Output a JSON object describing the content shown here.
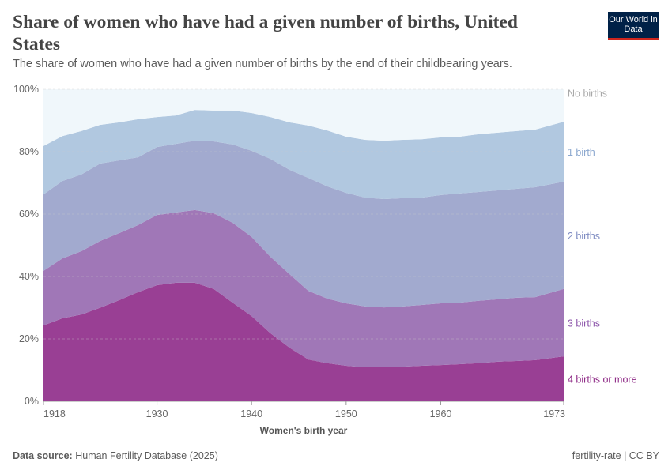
{
  "header": {
    "title": "Share of women who have had a given number of births, United States",
    "subtitle": "The share of women who have had a given number of births by the end of their childbearing years.",
    "logo_text": "Our World in Data"
  },
  "footer": {
    "source_label": "Data source:",
    "source_value": "Human Fertility Database (2025)",
    "right": "fertility-rate | CC BY"
  },
  "chart_data": {
    "type": "area",
    "stacked": true,
    "xlabel": "Women's birth year",
    "ylabel": "",
    "xlim": [
      1918,
      1973
    ],
    "ylim": [
      0,
      100
    ],
    "x_ticks": [
      "1918",
      "1930",
      "1940",
      "1950",
      "1960",
      "1973"
    ],
    "y_ticks": [
      "0%",
      "20%",
      "40%",
      "60%",
      "80%",
      "100%"
    ],
    "grid": "horizontal dashed",
    "legend": "right (inline labels)",
    "x": [
      1918,
      1920,
      1922,
      1924,
      1926,
      1928,
      1930,
      1932,
      1934,
      1936,
      1938,
      1940,
      1942,
      1944,
      1946,
      1948,
      1950,
      1952,
      1954,
      1956,
      1958,
      1960,
      1962,
      1964,
      1966,
      1968,
      1970,
      1973
    ],
    "series": [
      {
        "name": "4 births or more",
        "color": "#993f94",
        "label_color": "#8e2a86",
        "values": [
          24.3,
          26.6,
          27.8,
          30.0,
          32.4,
          35.0,
          37.2,
          38.0,
          38.0,
          36.0,
          31.6,
          27.3,
          21.8,
          17.2,
          13.4,
          12.2,
          11.4,
          10.9,
          10.9,
          11.1,
          11.4,
          11.6,
          11.9,
          12.2,
          12.7,
          12.9,
          13.2,
          14.4
        ]
      },
      {
        "name": "3 births",
        "color": "#a077b7",
        "label_color": "#8c55aa",
        "values": [
          17.5,
          19.2,
          20.3,
          21.4,
          21.5,
          21.5,
          22.5,
          22.5,
          23.3,
          24.3,
          25.6,
          25.4,
          24.5,
          23.6,
          22.0,
          20.7,
          20.0,
          19.5,
          19.2,
          19.3,
          19.5,
          19.8,
          19.7,
          20.0,
          20.0,
          20.3,
          20.2,
          21.6
        ]
      },
      {
        "name": "2 births",
        "color": "#a2aacf",
        "label_color": "#7f8cc2",
        "values": [
          24.5,
          24.8,
          24.6,
          24.8,
          23.3,
          21.7,
          21.8,
          22.0,
          22.2,
          23.0,
          25.1,
          27.6,
          31.4,
          33.4,
          36.2,
          36.0,
          35.4,
          34.9,
          34.7,
          34.7,
          34.4,
          34.7,
          35.0,
          34.9,
          34.9,
          34.9,
          35.2,
          34.4
        ]
      },
      {
        "name": "1 birth",
        "color": "#b1c8e0",
        "label_color": "#8ca8cf",
        "values": [
          15.5,
          14.4,
          13.9,
          12.4,
          12.2,
          12.2,
          9.6,
          9.1,
          9.9,
          9.9,
          10.9,
          12.1,
          13.4,
          15.2,
          16.8,
          17.9,
          18.0,
          18.5,
          18.7,
          18.7,
          18.7,
          18.5,
          18.2,
          18.5,
          18.5,
          18.5,
          18.5,
          19.2
        ]
      },
      {
        "name": "No births",
        "color": "#f0f7fb",
        "label_color": "#a8a8a8",
        "values": [
          18.2,
          15.0,
          13.4,
          11.4,
          10.6,
          9.6,
          8.9,
          8.4,
          6.6,
          6.8,
          6.8,
          7.6,
          8.9,
          10.6,
          11.6,
          13.2,
          15.2,
          16.2,
          16.5,
          16.2,
          16.0,
          15.4,
          15.2,
          14.4,
          13.9,
          13.4,
          12.9,
          10.4
        ]
      }
    ]
  }
}
